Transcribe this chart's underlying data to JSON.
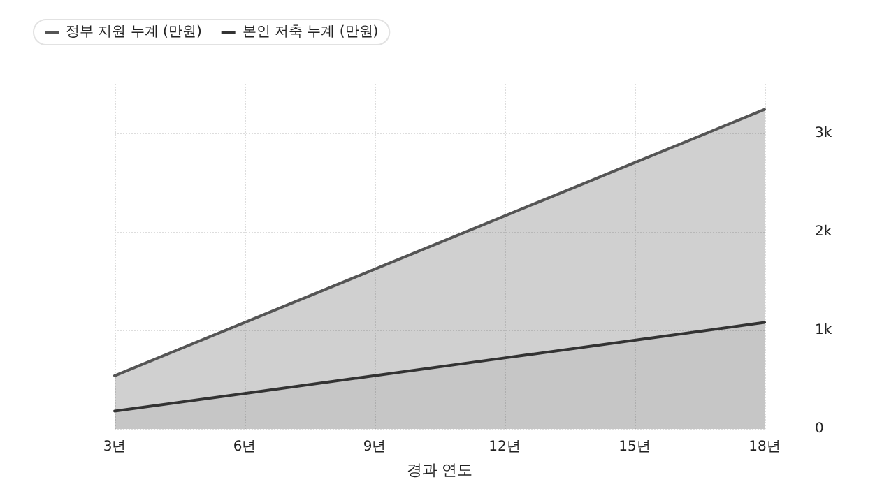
{
  "chart_data": {
    "type": "area",
    "stacked": true,
    "xlabel": "경과 연도",
    "categories": [
      "3년",
      "6년",
      "9년",
      "12년",
      "15년",
      "18년"
    ],
    "series": [
      {
        "name": "본인 저축 누계 (만원)",
        "color": "#333333",
        "values": [
          180,
          360,
          540,
          720,
          900,
          1080
        ]
      },
      {
        "name": "정부 지원 누계 (만원)",
        "color": "#555555",
        "values": [
          360,
          720,
          1080,
          1440,
          1800,
          2160
        ]
      }
    ],
    "ylim": [
      0,
      3500
    ],
    "yticks": [
      0,
      {
        "value": 1000,
        "label": "1k"
      },
      {
        "value": 2000,
        "label": "2k"
      },
      {
        "value": 3000,
        "label": "3k"
      }
    ],
    "grid": true,
    "legend": "top left",
    "marker": "none",
    "line_style": "solid"
  }
}
